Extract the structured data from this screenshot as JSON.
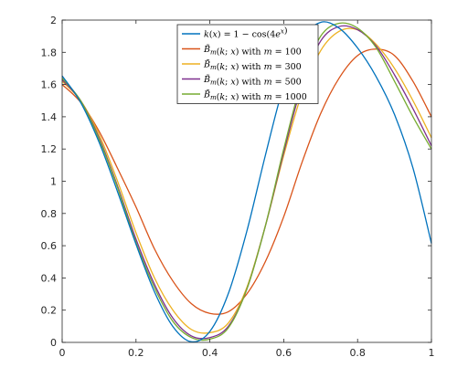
{
  "chart_data": {
    "type": "line",
    "title": "",
    "xlabel": "",
    "ylabel": "",
    "xlim": [
      0,
      1
    ],
    "ylim": [
      0,
      2
    ],
    "xticks": [
      "0",
      "0.2",
      "0.4",
      "0.6",
      "0.8",
      "1"
    ],
    "yticks": [
      "0",
      "0.2",
      "0.4",
      "0.6",
      "0.8",
      "1",
      "1.2",
      "1.4",
      "1.6",
      "1.8",
      "2"
    ],
    "grid": false,
    "legend_position": "top-center",
    "x": [
      0,
      0.05,
      0.1,
      0.15,
      0.2,
      0.25,
      0.3,
      0.35,
      0.4,
      0.45,
      0.5,
      0.55,
      0.6,
      0.65,
      0.7,
      0.75,
      0.8,
      0.85,
      0.9,
      0.95,
      1
    ],
    "series": [
      {
        "name": "k(x) = 1 − cos(4e^x)",
        "legend_parts": [
          [
            "it",
            "k"
          ],
          [
            "",
            "("
          ],
          [
            "it",
            "x"
          ],
          [
            "",
            ") = 1 − cos(4"
          ],
          [
            "it",
            "e"
          ],
          [
            "sup",
            "x"
          ],
          [
            "",
            ")"
          ]
        ],
        "color": "#0072BD",
        "values": [
          1.654,
          1.489,
          1.242,
          0.935,
          0.609,
          0.314,
          0.098,
          0.004,
          0.068,
          0.303,
          0.689,
          1.158,
          1.594,
          1.881,
          1.986,
          1.95,
          1.827,
          1.65,
          1.414,
          1.082,
          0.614
        ]
      },
      {
        "name": "B̃m(k; x) with m = 100",
        "legend_parts": [
          [
            "it",
            "B̃"
          ],
          [
            "sub",
            "m"
          ],
          [
            "",
            "("
          ],
          [
            "it",
            "k"
          ],
          [
            "",
            "; "
          ],
          [
            "it",
            "x"
          ],
          [
            "",
            ") with "
          ],
          [
            "it",
            "m"
          ],
          [
            "",
            " = 100"
          ]
        ],
        "color": "#D95319",
        "values": [
          1.6,
          1.49,
          1.31,
          1.08,
          0.84,
          0.58,
          0.38,
          0.24,
          0.18,
          0.19,
          0.3,
          0.5,
          0.78,
          1.12,
          1.42,
          1.64,
          1.78,
          1.82,
          1.78,
          1.62,
          1.4
        ]
      },
      {
        "name": "B̃m(k; x) with m = 300",
        "legend_parts": [
          [
            "it",
            "B̃"
          ],
          [
            "sub",
            "m"
          ],
          [
            "",
            "("
          ],
          [
            "it",
            "k"
          ],
          [
            "",
            "; "
          ],
          [
            "it",
            "x"
          ],
          [
            "",
            ") with "
          ],
          [
            "it",
            "m"
          ],
          [
            "",
            " = 300"
          ]
        ],
        "color": "#EDB120",
        "values": [
          1.62,
          1.5,
          1.29,
          1.0,
          0.68,
          0.4,
          0.2,
          0.08,
          0.06,
          0.12,
          0.34,
          0.72,
          1.16,
          1.55,
          1.81,
          1.93,
          1.94,
          1.85,
          1.7,
          1.5,
          1.27
        ]
      },
      {
        "name": "B̃m(k; x) with m = 500",
        "legend_parts": [
          [
            "it",
            "B̃"
          ],
          [
            "sub",
            "m"
          ],
          [
            "",
            "("
          ],
          [
            "it",
            "k"
          ],
          [
            "",
            "; "
          ],
          [
            "it",
            "x"
          ],
          [
            "",
            ") with "
          ],
          [
            "it",
            "m"
          ],
          [
            "",
            " = 500"
          ]
        ],
        "color": "#7E2F8E",
        "values": [
          1.63,
          1.5,
          1.27,
          0.97,
          0.64,
          0.36,
          0.15,
          0.04,
          0.03,
          0.1,
          0.33,
          0.72,
          1.18,
          1.6,
          1.87,
          1.96,
          1.94,
          1.84,
          1.66,
          1.45,
          1.22
        ]
      },
      {
        "name": "B̃m(k; x) with m = 1000",
        "legend_parts": [
          [
            "it",
            "B̃"
          ],
          [
            "sub",
            "m"
          ],
          [
            "",
            "("
          ],
          [
            "it",
            "k"
          ],
          [
            "",
            "; "
          ],
          [
            "it",
            "x"
          ],
          [
            "",
            ") with "
          ],
          [
            "it",
            "m"
          ],
          [
            "",
            " = 1000"
          ]
        ],
        "color": "#77AC30",
        "values": [
          1.64,
          1.5,
          1.26,
          0.96,
          0.62,
          0.34,
          0.13,
          0.03,
          0.02,
          0.09,
          0.33,
          0.72,
          1.2,
          1.63,
          1.9,
          1.98,
          1.95,
          1.83,
          1.62,
          1.4,
          1.2
        ]
      }
    ]
  }
}
